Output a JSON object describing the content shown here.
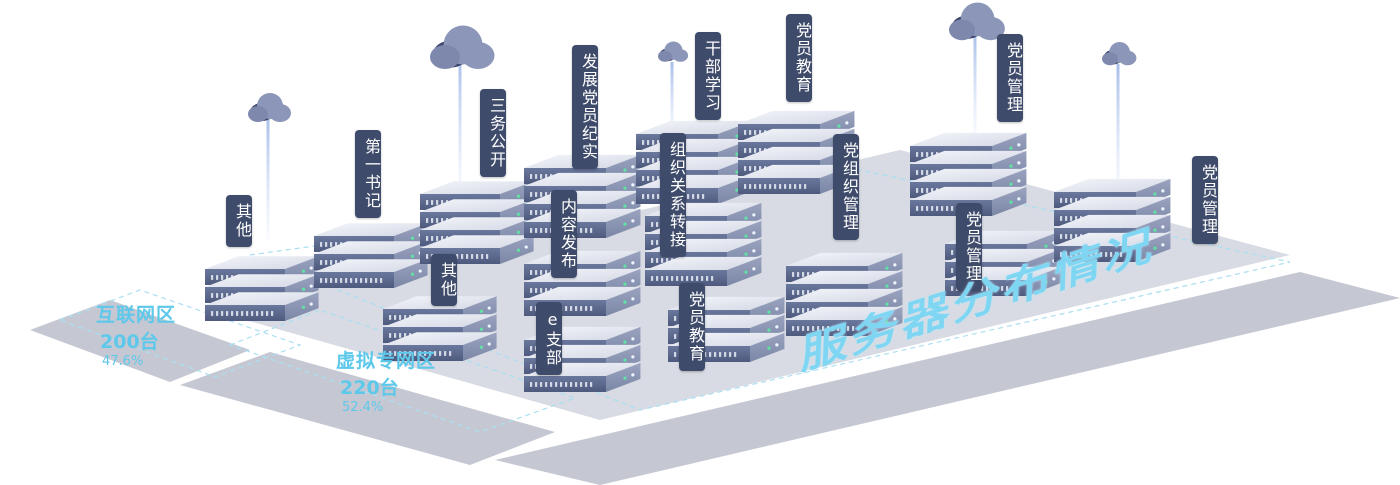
{
  "title": "服务器分布情况",
  "zones": [
    {
      "id": "internet",
      "name": "互联网区",
      "count": "200台",
      "percent": "47.6%"
    },
    {
      "id": "private",
      "name": "虚拟专网区",
      "count": "220台",
      "percent": "52.4%"
    }
  ],
  "labels": [
    {
      "id": "qita-1",
      "text": "其他"
    },
    {
      "id": "diyi-shuji",
      "text": "第一书记"
    },
    {
      "id": "qita-2",
      "text": "其他"
    },
    {
      "id": "sanwu-gongkai",
      "text": "三务公开"
    },
    {
      "id": "fazhan-dangyuan",
      "text": "发展党员纪实"
    },
    {
      "id": "neirong-fabu",
      "text": "内容发布"
    },
    {
      "id": "e-zhibu",
      "text": "e支部"
    },
    {
      "id": "ganbu-xuexi",
      "text": "干部学习"
    },
    {
      "id": "zuzhi-guanxi",
      "text": "组织关系转接"
    },
    {
      "id": "dangyuan-jiaoyu-1",
      "text": "党员教育"
    },
    {
      "id": "dangyuan-jiaoyu-2",
      "text": "党员教育"
    },
    {
      "id": "dang-zuzhi-guanli",
      "text": "党组织管理"
    },
    {
      "id": "dangyuan-guanli-1",
      "text": "党员管理"
    },
    {
      "id": "dangyuan-guanli-2",
      "text": "党员管理"
    },
    {
      "id": "dangyuan-guanli-3",
      "text": "党员管理"
    }
  ],
  "colors": {
    "platform": "#c5c8d2",
    "serverTop": "#e6e9f1",
    "serverFront": "#5d6a90",
    "serverSide": "#8a95b3",
    "label": "#3f4b6a",
    "accent": "#5ec8ea",
    "cloud": "#8c96b8"
  },
  "icons": [
    "cloud-icon",
    "server-rack-icon"
  ]
}
